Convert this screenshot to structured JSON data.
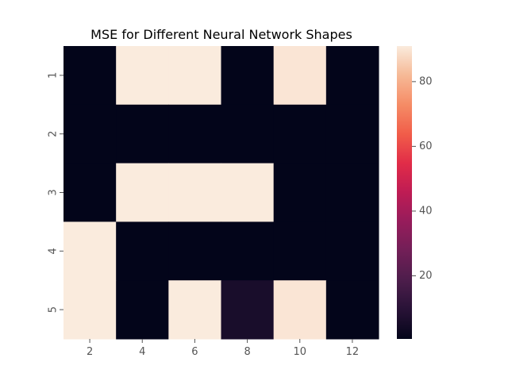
{
  "chart_data": {
    "type": "heatmap",
    "title": "MSE for Different Neural Network Shapes",
    "xlabel": "",
    "ylabel": "",
    "x_categories": [
      "2",
      "4",
      "6",
      "8",
      "10",
      "12"
    ],
    "y_categories": [
      "1",
      "2",
      "3",
      "4",
      "5"
    ],
    "values": [
      [
        0.5,
        91,
        91,
        0.5,
        90,
        0.5
      ],
      [
        0.5,
        0.5,
        0.5,
        0.5,
        0.5,
        0.5
      ],
      [
        0.5,
        91,
        91,
        91,
        0.5,
        0.5
      ],
      [
        91,
        0.5,
        0.5,
        0.5,
        0.5,
        0.5
      ],
      [
        91,
        0.5,
        91,
        6,
        90,
        0.5
      ]
    ],
    "colorbar": {
      "range": [
        0.5,
        91
      ],
      "ticks": [
        20,
        40,
        60,
        80
      ],
      "colormap": "rocket"
    },
    "grid": false,
    "legend": "colorbar-right"
  }
}
